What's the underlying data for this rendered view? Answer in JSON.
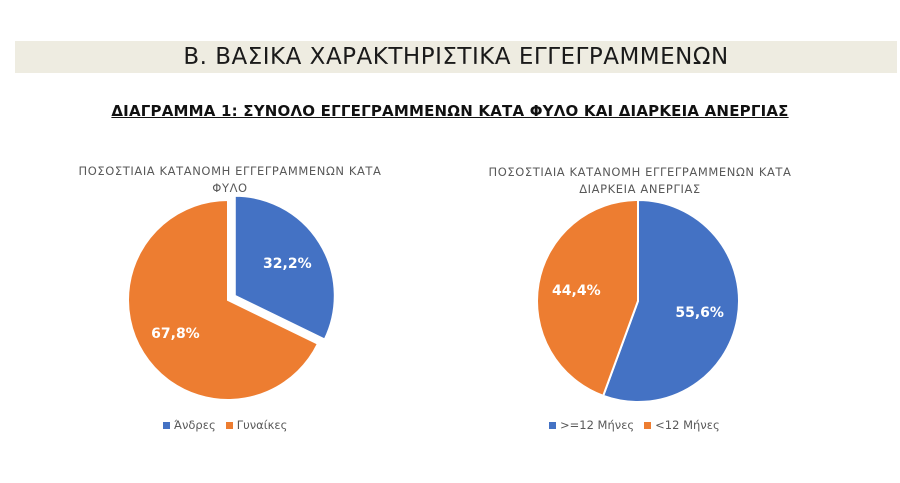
{
  "header": {
    "section_title": "Β.  ΒΑΣΙΚΑ ΧΑΡΑΚΤΗΡΙΣΤΙΚΑ ΕΓΓΕΓΡΑΜΜΕΝΩΝ",
    "diagram_title": "ΔΙΑΓΡΑΜΜΑ 1: ΣΥΝΟΛΟ ΕΓΓΕΓΡΑΜΜΕΝΩΝ ΚΑΤΑ ΦΥΛΟ ΚΑΙ ΔΙΑΡΚΕΙΑ ΑΝΕΡΓΙΑΣ"
  },
  "chart_data": [
    {
      "type": "pie",
      "title_lines": [
        "ΠΟΣΟΣΤΙΑΙΑ ΚΑΤΑΝΟΜΗ ΕΓΓΕΓΡΑΜΜΕΝΩΝ ΚΑΤΑ",
        "ΦΥΛΟ"
      ],
      "labels": [
        "Άνδρες",
        "Γυναίκες"
      ],
      "values": [
        32.2,
        67.8
      ],
      "data_labels": [
        "32,2%",
        "67,8%"
      ],
      "colors": [
        "#4472c4",
        "#ed7d31"
      ],
      "exploded_slice": 0,
      "legend_position": "bottom"
    },
    {
      "type": "pie",
      "title_lines": [
        "ΠΟΣΟΣΤΙΑΙΑ ΚΑΤΑΝΟΜΗ ΕΓΓΕΓΡΑΜΜΕΝΩΝ ΚΑΤΑ",
        "ΔΙΑΡΚΕΙΑ ΑΝΕΡΓΙΑΣ"
      ],
      "labels": [
        ">=12 Μήνες",
        "<12 Μήνες"
      ],
      "values": [
        55.6,
        44.4
      ],
      "data_labels": [
        "55,6%",
        "44,4%"
      ],
      "colors": [
        "#4472c4",
        "#ed7d31"
      ],
      "exploded_slice": null,
      "legend_position": "bottom"
    }
  ]
}
